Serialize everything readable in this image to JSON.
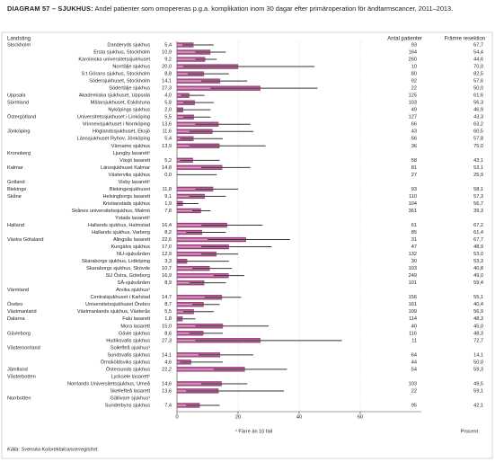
{
  "chart_data": {
    "type": "hbar-ci",
    "label": "DIAGRAM 57 – SJUKHUS:",
    "title": "Andel patienter som omopereras p.g.a. komplikation inom 30 dagar efter primäroperation för ändtarmscancer, 2011–2013.",
    "col_landsting": "Landsting",
    "col_n": "Antal patienter",
    "col_fr": "Främre resektion",
    "xlabel": "Procent",
    "footnote": "¹ Färre än 10 fall",
    "source": "Källa: Svenska Kolorektalcancerregistret.",
    "color": "#a8307e",
    "ci_color": "#333333",
    "grid": true,
    "xlim": [
      0,
      80
    ],
    "xticks": [
      0,
      20,
      40,
      60
    ],
    "landsting": [
      "Stockholm",
      null,
      null,
      null,
      null,
      null,
      null,
      "Uppsala",
      "Sörmland",
      null,
      "Östergötland",
      null,
      "Jönköping",
      null,
      null,
      "Kronoberg",
      null,
      "Kalmar",
      null,
      "Gotland",
      "Blekinge",
      "Skåne",
      null,
      null,
      null,
      "Halland",
      null,
      "Västra Götaland",
      null,
      null,
      null,
      null,
      null,
      null,
      "Värmland",
      null,
      "Örebro",
      "Västmanland",
      "Dalarna",
      null,
      "Gävleborg",
      null,
      "Västernorrland",
      null,
      null,
      "Jämtland",
      "Västerbotten",
      null,
      null,
      "Norrbotten",
      null
    ],
    "categories": [
      "Danderyds sjukhus",
      "Ersta sjukhus, Stockholm",
      "Karolinska universitetssjukhuset",
      "Norrtälje sjukhus",
      "S:t Görans sjukhus, Stockholm",
      "Södersjukhuset, Stockholm",
      "Södertälje sjukhus",
      "Akademiska sjukhuset, Uppsala",
      "Mälarsjukhuset, Eskilstuna",
      "Nyköpings sjukhus",
      "Universitetssjukhuset i Linköping",
      "Vrinnevisjukhuset i Norrköping",
      "Höglandssjukhuset, Eksjö",
      "Länssjukhuset Ryhov, Jönköping",
      "Värnamo sjukhus",
      "Ljungby lasarett¹",
      "Växjö lasarett",
      "Länssjukhuset Kalmar",
      "Västerviks sjukhus",
      "Visby lasarett¹",
      "Blekingesjukhuset",
      "Helsingborgs lasarett",
      "Kristianstads sjukhus",
      "Skånes universitetssjukhus, Malmö",
      "Ystads lasarett¹",
      "Hallands sjukhus, Halmstad",
      "Hallands sjukhus, Varberg",
      "Alingsås lasarett",
      "Kungälvs sjukhus",
      "NU-sjukvården",
      "Skaraborgs sjukhus, Lidköping",
      "Skaraborgs sjukhus, Skövde",
      "SU Östra, Göteborg",
      "SÄ-sjukvården",
      "Arvika sjukhus¹",
      "Centralsjukhuset i Karlstad",
      "Universitetssjukhuset Örebro",
      "Västmanlands sjukhus, Västerås",
      "Falu lasarett",
      "Mora lasarett",
      "Gävle sjukhus",
      "Hudiksvalls sjukhus",
      "Sollefteå sjukhus¹",
      "Sundsvalls sjukhus",
      "Örnsköldsviks sjukhus",
      "Östersunds sjukhus",
      "Lycksele lasarett¹",
      "Norrlands Universitetssjukhus, Umeå",
      "Skellefteå lasarett",
      "Gällivare sjukhus¹",
      "Sunderbyns sjukhus"
    ],
    "values": [
      5.4,
      10.9,
      9.2,
      20.0,
      8.8,
      14.1,
      27.3,
      4.0,
      5.8,
      2.0,
      5.5,
      13.6,
      11.6,
      5.4,
      13.9,
      null,
      5.2,
      14.8,
      0.0,
      null,
      11.8,
      9.1,
      1.9,
      7.8,
      null,
      16.4,
      8.2,
      22.6,
      17.0,
      12.9,
      3.3,
      10.7,
      16.9,
      8.9,
      null,
      14.7,
      8.7,
      5.5,
      1.8,
      15.0,
      8.6,
      27.3,
      null,
      14.1,
      4.6,
      22.2,
      null,
      14.6,
      13.6,
      null,
      7.4
    ],
    "value_labels": [
      "5,4",
      "10,9",
      "9,2",
      "20,0",
      "8,8",
      "14,1",
      "27,3",
      "4,0",
      "5,8",
      "2,0",
      "5,5",
      "13,6",
      "11,6",
      "5,4",
      "13,9",
      null,
      "5,2",
      "14,8",
      "0,0",
      null,
      "11,8",
      "9,1",
      "1,9",
      "7,8",
      null,
      "16,4",
      "8,2",
      "22,6",
      "17,0",
      "12,9",
      "3,3",
      "10,7",
      "16,9",
      "8,9",
      null,
      "14,7",
      "8,7",
      "5,5",
      "1,8",
      "15,0",
      "8,6",
      "27,3",
      null,
      "14,1",
      "4,6",
      "22,2",
      null,
      "14,6",
      "13,6",
      null,
      "7,4"
    ],
    "ci_low": [
      1.8,
      6,
      6,
      2,
      3.5,
      8,
      11,
      1.3,
      2,
      0,
      2,
      6,
      4,
      1,
      4,
      null,
      1,
      8,
      0,
      null,
      6,
      4,
      0,
      5,
      null,
      8,
      3,
      10,
      8,
      8,
      0,
      5,
      12,
      4,
      null,
      9,
      5,
      2,
      0,
      6,
      4,
      6,
      null,
      7,
      1,
      12,
      null,
      8,
      3,
      null,
      3
    ],
    "ci_high": [
      12,
      16,
      13,
      45,
      17,
      23,
      46,
      9,
      12,
      11,
      11,
      24,
      25,
      15,
      29,
      null,
      14,
      24,
      13,
      null,
      20,
      16,
      7,
      11,
      null,
      28,
      16,
      37,
      31,
      20,
      17,
      18,
      22,
      16,
      null,
      21,
      14,
      12,
      6,
      30,
      15,
      54,
      null,
      25,
      15,
      36,
      null,
      23,
      35,
      null,
      14
    ],
    "n": [
      93,
      164,
      260,
      10,
      80,
      92,
      22,
      125,
      103,
      49,
      127,
      66,
      43,
      56,
      36,
      null,
      58,
      81,
      27,
      null,
      93,
      110,
      104,
      361,
      null,
      61,
      85,
      31,
      47,
      132,
      30,
      103,
      249,
      101,
      null,
      156,
      161,
      109,
      114,
      40,
      116,
      11,
      null,
      64,
      44,
      54,
      null,
      103,
      22,
      null,
      95
    ],
    "framre": [
      "67,7",
      "54,4",
      "44,6",
      "70,0",
      "82,5",
      "57,6",
      "50,0",
      "61,6",
      "56,3",
      "46,9",
      "43,3",
      "63,2",
      "60,5",
      "57,8",
      "75,0",
      null,
      "43,1",
      "53,1",
      "25,9",
      null,
      "58,1",
      "57,3",
      "56,7",
      "39,3",
      null,
      "67,2",
      "61,4",
      "67,7",
      "48,9",
      "53,0",
      "53,3",
      "40,8",
      "49,0",
      "59,4",
      null,
      "55,1",
      "40,4",
      "56,9",
      "48,3",
      "45,0",
      "48,3",
      "72,7",
      null,
      "14,1",
      "50,0",
      "59,3",
      null,
      "49,5",
      "59,1",
      null,
      "42,1"
    ]
  }
}
